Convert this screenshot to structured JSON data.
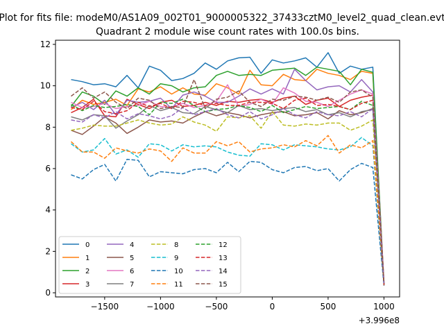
{
  "chart_data": {
    "type": "line",
    "suptitle": "Plot for fits file: modeM0/AS1A09_002T01_9000005322_37433cztM0_level2_quad_clean.evt",
    "title": "Quadrant 2 module wise count rates with 100.0s bins.",
    "xlabel": "",
    "ylabel": "",
    "x_offset_label": "+3.996e8",
    "xlim": [
      -1940,
      1140
    ],
    "ylim": [
      -0.2,
      12.2
    ],
    "x_ticks": [
      -1500,
      -1000,
      -500,
      0,
      500,
      1000
    ],
    "x_tick_labels": [
      "−1500",
      "−1000",
      "−500",
      "0",
      "500",
      "1000"
    ],
    "y_ticks": [
      0,
      2,
      4,
      6,
      8,
      10,
      12
    ],
    "y_tick_labels": [
      "0",
      "2",
      "4",
      "6",
      "8",
      "10",
      "12"
    ],
    "grid": false,
    "legend_position": "lower-left",
    "legend_columns": 4,
    "x": [
      -1800,
      -1700,
      -1600,
      -1500,
      -1400,
      -1300,
      -1200,
      -1100,
      -1000,
      -900,
      -800,
      -700,
      -600,
      -500,
      -400,
      -300,
      -200,
      -100,
      0,
      100,
      200,
      300,
      400,
      500,
      600,
      700,
      800,
      900,
      1000
    ],
    "series": [
      {
        "name": "0",
        "color": "#1f77b4",
        "dash": "solid",
        "values": [
          10.3,
          10.2,
          10.05,
          10.1,
          9.95,
          10.5,
          9.9,
          10.95,
          10.75,
          10.25,
          10.35,
          10.6,
          11.1,
          10.8,
          11.2,
          11.35,
          11.38,
          10.6,
          11.25,
          11.1,
          11.2,
          11.35,
          10.9,
          11.6,
          10.6,
          10.95,
          10.8,
          10.9,
          0.4
        ]
      },
      {
        "name": "1",
        "color": "#ff7f0e",
        "dash": "solid",
        "values": [
          8.85,
          9.3,
          9.1,
          9.2,
          9.35,
          9.05,
          9.85,
          9.7,
          9.95,
          9.6,
          9.9,
          9.6,
          9.55,
          10.1,
          9.9,
          9.6,
          10.75,
          10.05,
          10.0,
          10.55,
          10.3,
          10.25,
          10.8,
          10.6,
          10.5,
          10.3,
          10.7,
          10.6,
          0.45
        ]
      },
      {
        "name": "2",
        "color": "#2ca02c",
        "dash": "solid",
        "values": [
          9.0,
          9.7,
          9.5,
          9.1,
          9.75,
          9.5,
          9.9,
          9.6,
          10.1,
          10.0,
          9.7,
          9.9,
          9.95,
          10.5,
          10.7,
          10.5,
          10.55,
          10.5,
          10.75,
          10.8,
          10.85,
          10.5,
          10.9,
          10.8,
          10.7,
          10.05,
          10.8,
          10.65,
          0.35
        ]
      },
      {
        "name": "3",
        "color": "#d62728",
        "dash": "solid",
        "values": [
          8.7,
          8.95,
          9.35,
          8.55,
          8.5,
          9.35,
          9.1,
          8.9,
          9.2,
          9.3,
          9.0,
          9.05,
          9.2,
          9.05,
          9.25,
          9.2,
          9.3,
          9.35,
          9.2,
          9.4,
          9.5,
          9.1,
          9.3,
          9.4,
          9.0,
          9.3,
          9.45,
          9.55,
          0.35
        ]
      },
      {
        "name": "4",
        "color": "#9467bd",
        "dash": "solid",
        "values": [
          8.95,
          9.2,
          8.85,
          9.3,
          8.6,
          9.3,
          9.2,
          9.25,
          9.4,
          8.9,
          9.55,
          9.7,
          9.5,
          9.2,
          9.2,
          9.5,
          9.85,
          9.6,
          9.85,
          9.6,
          10.8,
          10.25,
          9.8,
          9.95,
          10.0,
          9.7,
          10.3,
          9.7,
          0.5
        ]
      },
      {
        "name": "5",
        "color": "#8c564b",
        "dash": "solid",
        "values": [
          7.85,
          7.65,
          8.05,
          8.5,
          8.2,
          7.7,
          8.0,
          8.35,
          8.25,
          8.3,
          8.2,
          8.5,
          8.75,
          8.55,
          8.7,
          8.6,
          8.45,
          8.6,
          8.7,
          8.75,
          8.55,
          8.6,
          8.7,
          8.4,
          8.8,
          8.6,
          8.7,
          8.9,
          0.45
        ]
      },
      {
        "name": "6",
        "color": "#e377c2",
        "dash": "solid",
        "values": [
          9.2,
          8.95,
          9.0,
          9.15,
          8.9,
          9.0,
          9.05,
          9.25,
          9.0,
          8.95,
          9.15,
          8.95,
          9.05,
          9.25,
          10.05,
          9.0,
          9.1,
          9.35,
          9.1,
          9.9,
          9.65,
          9.25,
          9.2,
          9.0,
          9.3,
          9.6,
          9.8,
          9.6,
          0.4
        ]
      },
      {
        "name": "7",
        "color": "#7f7f7f",
        "dash": "solid",
        "values": [
          8.5,
          8.35,
          8.6,
          8.55,
          7.95,
          8.3,
          8.6,
          9.05,
          8.8,
          8.95,
          8.7,
          8.65,
          9.0,
          8.85,
          8.7,
          9.05,
          8.85,
          8.9,
          8.8,
          8.9,
          8.95,
          8.75,
          8.85,
          8.6,
          8.7,
          8.5,
          8.75,
          8.85,
          0.45
        ]
      },
      {
        "name": "8",
        "color": "#bcbd22",
        "dash": "dashed",
        "values": [
          7.85,
          7.95,
          8.1,
          8.05,
          8.05,
          8.2,
          8.35,
          8.2,
          8.1,
          8.15,
          8.5,
          8.25,
          8.1,
          7.8,
          8.5,
          8.45,
          8.55,
          7.95,
          8.75,
          8.1,
          8.05,
          8.15,
          8.1,
          8.2,
          8.2,
          7.85,
          8.05,
          8.35,
          0.4
        ]
      },
      {
        "name": "9",
        "color": "#17becf",
        "dash": "dashed",
        "values": [
          7.2,
          6.8,
          6.9,
          7.45,
          6.7,
          6.9,
          6.55,
          7.2,
          7.15,
          6.85,
          7.15,
          7.05,
          7.1,
          7.05,
          6.8,
          6.65,
          6.6,
          7.2,
          7.15,
          6.9,
          7.15,
          7.1,
          7.05,
          6.95,
          6.9,
          7.05,
          7.5,
          7.1,
          0.4
        ]
      },
      {
        "name": "10",
        "color": "#1f77b4",
        "dash": "dashed",
        "values": [
          5.7,
          5.5,
          5.95,
          6.2,
          5.4,
          6.45,
          6.4,
          5.6,
          5.85,
          5.8,
          5.75,
          5.95,
          6.0,
          5.8,
          6.3,
          5.85,
          6.35,
          6.3,
          5.95,
          5.8,
          6.05,
          6.1,
          5.9,
          6.0,
          5.4,
          5.95,
          6.25,
          6.05,
          0.35
        ]
      },
      {
        "name": "11",
        "color": "#ff7f0e",
        "dash": "dashed",
        "values": [
          7.3,
          6.8,
          6.8,
          6.5,
          7.0,
          6.85,
          6.75,
          6.95,
          6.85,
          6.35,
          7.0,
          6.75,
          6.75,
          7.3,
          7.1,
          7.3,
          6.8,
          6.95,
          7.0,
          7.15,
          7.05,
          7.35,
          7.1,
          7.6,
          6.75,
          7.15,
          7.0,
          7.35,
          0.45
        ]
      },
      {
        "name": "12",
        "color": "#2ca02c",
        "dash": "dashed",
        "values": [
          9.1,
          8.8,
          9.05,
          8.95,
          9.0,
          9.1,
          9.0,
          8.6,
          9.2,
          9.15,
          9.35,
          9.05,
          8.75,
          8.85,
          8.9,
          9.05,
          8.95,
          8.75,
          9.05,
          8.7,
          8.85,
          9.0,
          8.9,
          8.95,
          9.0,
          8.85,
          9.25,
          9.05,
          0.4
        ]
      },
      {
        "name": "13",
        "color": "#d62728",
        "dash": "dashed",
        "values": [
          8.95,
          8.85,
          9.25,
          8.75,
          8.65,
          8.8,
          9.2,
          9.0,
          9.15,
          8.9,
          9.25,
          9.2,
          9.05,
          9.15,
          9.05,
          9.05,
          9.2,
          9.2,
          9.15,
          8.9,
          9.3,
          9.4,
          9.05,
          9.1,
          9.0,
          8.85,
          9.15,
          9.3,
          0.4
        ]
      },
      {
        "name": "14",
        "color": "#9467bd",
        "dash": "dashed",
        "values": [
          8.35,
          8.25,
          8.6,
          8.45,
          8.75,
          8.4,
          8.65,
          8.55,
          8.4,
          8.55,
          8.95,
          8.6,
          8.75,
          8.9,
          8.6,
          8.45,
          8.75,
          8.4,
          8.6,
          8.9,
          8.6,
          8.45,
          8.75,
          8.6,
          8.55,
          8.75,
          8.5,
          8.9,
          0.45
        ]
      },
      {
        "name": "15",
        "color": "#8c564b",
        "dash": "dashed",
        "values": [
          9.5,
          9.9,
          9.4,
          9.7,
          9.2,
          8.9,
          9.4,
          9.3,
          8.9,
          9.0,
          8.95,
          10.3,
          8.9,
          9.35,
          9.45,
          9.75,
          9.2,
          9.0,
          9.35,
          9.3,
          9.5,
          9.45,
          9.3,
          9.45,
          9.2,
          9.7,
          9.8,
          9.45,
          0.5
        ]
      }
    ]
  }
}
